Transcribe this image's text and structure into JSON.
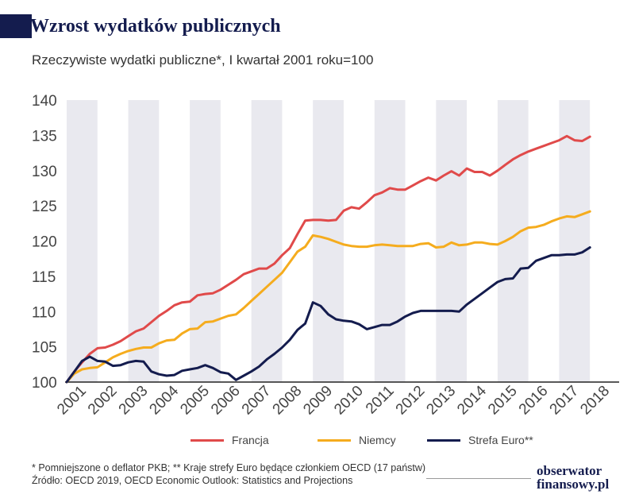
{
  "header": {
    "title": "Wzrost wydatków publicznych",
    "subtitle": "Rzeczywiste wydatki publiczne*, I kwartał 2001 roku=100"
  },
  "colors": {
    "title": "#141c4e",
    "band": "#e9e9ef",
    "francja": "#e04a4a",
    "niemcy": "#f5ac1e",
    "strefa": "#141c4e"
  },
  "chart_data": {
    "type": "line",
    "title": "Wzrost wydatków publicznych",
    "subtitle": "Rzeczywiste wydatki publiczne*, I kwartał 2001 roku=100",
    "xlabel": "",
    "ylabel": "",
    "ylim": [
      100,
      140
    ],
    "yticks": [
      100,
      105,
      110,
      115,
      120,
      125,
      130,
      135,
      140
    ],
    "xlim": [
      2001,
      2018.95
    ],
    "xtick_labels": [
      "2001",
      "2002",
      "2003",
      "2004",
      "2005",
      "2006",
      "2007",
      "2008",
      "2009",
      "2010",
      "2011",
      "2012",
      "2013",
      "2014",
      "2015",
      "2016",
      "2017",
      "2018"
    ],
    "grid": "alternating vertical year bands",
    "legend_position": "bottom",
    "series": [
      {
        "name": "Francja",
        "color": "#e04a4a",
        "points": [
          [
            2001.0,
            100.0
          ],
          [
            2001.25,
            101.5
          ],
          [
            2001.5,
            102.8
          ],
          [
            2001.75,
            104.0
          ],
          [
            2002.0,
            104.8
          ],
          [
            2002.25,
            104.9
          ],
          [
            2002.5,
            105.3
          ],
          [
            2002.75,
            105.8
          ],
          [
            2003.0,
            106.5
          ],
          [
            2003.25,
            107.2
          ],
          [
            2003.5,
            107.6
          ],
          [
            2003.75,
            108.5
          ],
          [
            2004.0,
            109.4
          ],
          [
            2004.25,
            110.1
          ],
          [
            2004.5,
            110.9
          ],
          [
            2004.75,
            111.3
          ],
          [
            2005.0,
            111.4
          ],
          [
            2005.25,
            112.3
          ],
          [
            2005.5,
            112.5
          ],
          [
            2005.75,
            112.6
          ],
          [
            2006.0,
            113.1
          ],
          [
            2006.25,
            113.8
          ],
          [
            2006.5,
            114.5
          ],
          [
            2006.75,
            115.3
          ],
          [
            2007.0,
            115.7
          ],
          [
            2007.25,
            116.1
          ],
          [
            2007.5,
            116.1
          ],
          [
            2007.75,
            116.8
          ],
          [
            2008.0,
            118.0
          ],
          [
            2008.25,
            119.0
          ],
          [
            2008.5,
            121.0
          ],
          [
            2008.75,
            122.9
          ],
          [
            2009.0,
            123.0
          ],
          [
            2009.25,
            123.0
          ],
          [
            2009.5,
            122.9
          ],
          [
            2009.75,
            123.0
          ],
          [
            2010.0,
            124.3
          ],
          [
            2010.25,
            124.8
          ],
          [
            2010.5,
            124.6
          ],
          [
            2010.75,
            125.5
          ],
          [
            2011.0,
            126.5
          ],
          [
            2011.25,
            126.9
          ],
          [
            2011.5,
            127.5
          ],
          [
            2011.75,
            127.3
          ],
          [
            2012.0,
            127.3
          ],
          [
            2012.25,
            127.9
          ],
          [
            2012.5,
            128.5
          ],
          [
            2012.75,
            129.0
          ],
          [
            2013.0,
            128.6
          ],
          [
            2013.25,
            129.3
          ],
          [
            2013.5,
            129.9
          ],
          [
            2013.75,
            129.3
          ],
          [
            2014.0,
            130.3
          ],
          [
            2014.25,
            129.8
          ],
          [
            2014.5,
            129.8
          ],
          [
            2014.75,
            129.3
          ],
          [
            2015.0,
            130.0
          ],
          [
            2015.25,
            130.8
          ],
          [
            2015.5,
            131.6
          ],
          [
            2015.75,
            132.2
          ],
          [
            2016.0,
            132.7
          ],
          [
            2016.25,
            133.1
          ],
          [
            2016.5,
            133.5
          ],
          [
            2016.75,
            133.9
          ],
          [
            2017.0,
            134.3
          ],
          [
            2017.25,
            134.9
          ],
          [
            2017.5,
            134.3
          ],
          [
            2017.75,
            134.2
          ],
          [
            2018.0,
            134.8
          ]
        ]
      },
      {
        "name": "Niemcy",
        "color": "#f5ac1e",
        "points": [
          [
            2001.0,
            100.0
          ],
          [
            2001.25,
            101.2
          ],
          [
            2001.5,
            101.8
          ],
          [
            2001.75,
            102.0
          ],
          [
            2002.0,
            102.1
          ],
          [
            2002.25,
            102.8
          ],
          [
            2002.5,
            103.5
          ],
          [
            2002.75,
            104.0
          ],
          [
            2003.0,
            104.4
          ],
          [
            2003.25,
            104.7
          ],
          [
            2003.5,
            104.9
          ],
          [
            2003.75,
            104.9
          ],
          [
            2004.0,
            105.5
          ],
          [
            2004.25,
            105.9
          ],
          [
            2004.5,
            106.0
          ],
          [
            2004.75,
            106.9
          ],
          [
            2005.0,
            107.5
          ],
          [
            2005.25,
            107.6
          ],
          [
            2005.5,
            108.5
          ],
          [
            2005.75,
            108.6
          ],
          [
            2006.0,
            109.0
          ],
          [
            2006.25,
            109.4
          ],
          [
            2006.5,
            109.6
          ],
          [
            2006.75,
            110.5
          ],
          [
            2007.0,
            111.5
          ],
          [
            2007.25,
            112.5
          ],
          [
            2007.5,
            113.5
          ],
          [
            2007.75,
            114.5
          ],
          [
            2008.0,
            115.5
          ],
          [
            2008.25,
            117.0
          ],
          [
            2008.5,
            118.5
          ],
          [
            2008.75,
            119.2
          ],
          [
            2009.0,
            120.8
          ],
          [
            2009.25,
            120.6
          ],
          [
            2009.5,
            120.3
          ],
          [
            2009.75,
            119.9
          ],
          [
            2010.0,
            119.5
          ],
          [
            2010.25,
            119.3
          ],
          [
            2010.5,
            119.2
          ],
          [
            2010.75,
            119.2
          ],
          [
            2011.0,
            119.4
          ],
          [
            2011.25,
            119.5
          ],
          [
            2011.5,
            119.4
          ],
          [
            2011.75,
            119.3
          ],
          [
            2012.0,
            119.3
          ],
          [
            2012.25,
            119.3
          ],
          [
            2012.5,
            119.6
          ],
          [
            2012.75,
            119.7
          ],
          [
            2013.0,
            119.1
          ],
          [
            2013.25,
            119.2
          ],
          [
            2013.5,
            119.8
          ],
          [
            2013.75,
            119.4
          ],
          [
            2014.0,
            119.5
          ],
          [
            2014.25,
            119.8
          ],
          [
            2014.5,
            119.8
          ],
          [
            2014.75,
            119.6
          ],
          [
            2015.0,
            119.5
          ],
          [
            2015.25,
            120.0
          ],
          [
            2015.5,
            120.6
          ],
          [
            2015.75,
            121.4
          ],
          [
            2016.0,
            121.9
          ],
          [
            2016.25,
            122.0
          ],
          [
            2016.5,
            122.3
          ],
          [
            2016.75,
            122.8
          ],
          [
            2017.0,
            123.2
          ],
          [
            2017.25,
            123.5
          ],
          [
            2017.5,
            123.4
          ],
          [
            2017.75,
            123.8
          ],
          [
            2018.0,
            124.2
          ]
        ]
      },
      {
        "name": "Strefa Euro**",
        "color": "#141c4e",
        "points": [
          [
            2001.0,
            100.0
          ],
          [
            2001.25,
            101.5
          ],
          [
            2001.5,
            103.0
          ],
          [
            2001.75,
            103.6
          ],
          [
            2002.0,
            103.0
          ],
          [
            2002.25,
            102.9
          ],
          [
            2002.5,
            102.3
          ],
          [
            2002.75,
            102.4
          ],
          [
            2003.0,
            102.8
          ],
          [
            2003.25,
            103.0
          ],
          [
            2003.5,
            102.9
          ],
          [
            2003.75,
            101.5
          ],
          [
            2004.0,
            101.1
          ],
          [
            2004.25,
            100.9
          ],
          [
            2004.5,
            101.0
          ],
          [
            2004.75,
            101.6
          ],
          [
            2005.0,
            101.8
          ],
          [
            2005.25,
            102.0
          ],
          [
            2005.5,
            102.4
          ],
          [
            2005.75,
            102.0
          ],
          [
            2006.0,
            101.4
          ],
          [
            2006.25,
            101.2
          ],
          [
            2006.5,
            100.3
          ],
          [
            2006.75,
            100.9
          ],
          [
            2007.0,
            101.5
          ],
          [
            2007.25,
            102.2
          ],
          [
            2007.5,
            103.2
          ],
          [
            2007.75,
            104.0
          ],
          [
            2008.0,
            104.9
          ],
          [
            2008.25,
            106.0
          ],
          [
            2008.5,
            107.4
          ],
          [
            2008.75,
            108.3
          ],
          [
            2009.0,
            111.3
          ],
          [
            2009.25,
            110.8
          ],
          [
            2009.5,
            109.6
          ],
          [
            2009.75,
            108.9
          ],
          [
            2010.0,
            108.7
          ],
          [
            2010.25,
            108.6
          ],
          [
            2010.5,
            108.2
          ],
          [
            2010.75,
            107.5
          ],
          [
            2011.0,
            107.8
          ],
          [
            2011.25,
            108.1
          ],
          [
            2011.5,
            108.1
          ],
          [
            2011.75,
            108.6
          ],
          [
            2012.0,
            109.3
          ],
          [
            2012.25,
            109.8
          ],
          [
            2012.5,
            110.1
          ],
          [
            2012.75,
            110.1
          ],
          [
            2013.0,
            110.1
          ],
          [
            2013.25,
            110.1
          ],
          [
            2013.5,
            110.1
          ],
          [
            2013.75,
            110.0
          ],
          [
            2014.0,
            111.0
          ],
          [
            2014.25,
            111.8
          ],
          [
            2014.5,
            112.6
          ],
          [
            2014.75,
            113.4
          ],
          [
            2015.0,
            114.2
          ],
          [
            2015.25,
            114.6
          ],
          [
            2015.5,
            114.7
          ],
          [
            2015.75,
            116.1
          ],
          [
            2016.0,
            116.2
          ],
          [
            2016.25,
            117.2
          ],
          [
            2016.5,
            117.6
          ],
          [
            2016.75,
            118.0
          ],
          [
            2017.0,
            118.0
          ],
          [
            2017.25,
            118.1
          ],
          [
            2017.5,
            118.1
          ],
          [
            2017.75,
            118.4
          ],
          [
            2018.0,
            119.1
          ]
        ]
      }
    ]
  },
  "footnotes": {
    "line1": "* Pomniejszone o deflator PKB;  ** Kraje strefy Euro będące członkiem OECD (17 państw)",
    "line2": "Źródło: OECD 2019, OECD Economic Outlook: Statistics and Projections"
  },
  "logo": {
    "line1": "obserwator",
    "line2": "finansowy.pl"
  }
}
